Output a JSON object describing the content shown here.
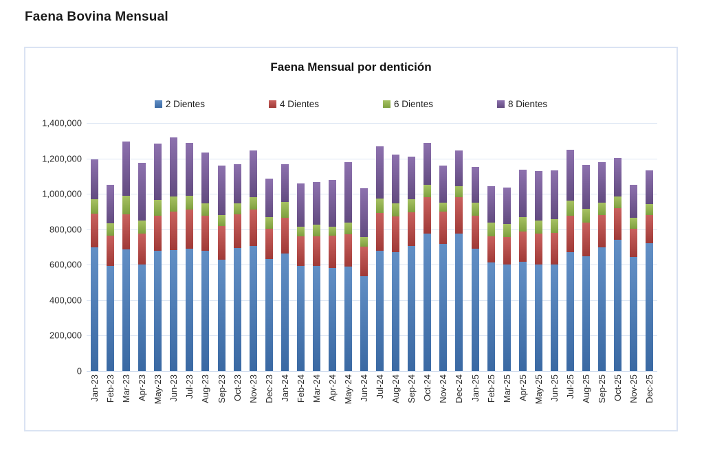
{
  "page": {
    "title": "Faena Bovina Mensual"
  },
  "colors": {
    "chart_border": "#dae3f3",
    "gridline": "#dde6f3",
    "axis_line": "#c9d7ec"
  },
  "chart_data": {
    "type": "bar",
    "stacked": true,
    "title": "Faena Mensual por dentición",
    "xlabel": "",
    "ylabel": "",
    "ylim": [
      0,
      1400000
    ],
    "ytick_interval": 200000,
    "ytick_labels": [
      "0",
      "200,000",
      "400,000",
      "600,000",
      "800,000",
      "1,000,000",
      "1,200,000",
      "1,400,000"
    ],
    "grid": true,
    "legend_position": "top",
    "categories": [
      "Jan-23",
      "Feb-23",
      "Mar-23",
      "Apr-23",
      "May-23",
      "Jun-23",
      "Jul-23",
      "Aug-23",
      "Sep-23",
      "Oct-23",
      "Nov-23",
      "Dec-23",
      "Jan-24",
      "Feb-24",
      "Mar-24",
      "Apr-24",
      "May-24",
      "Jun-24",
      "Jul-24",
      "Aug-24",
      "Sep-24",
      "Oct-24",
      "Nov-24",
      "Dec-24",
      "Jan-25",
      "Feb-25",
      "Mar-25",
      "Apr-25",
      "May-25",
      "Jun-25",
      "Jul-25",
      "Aug-25",
      "Sep-25",
      "Oct-25",
      "Nov-25",
      "Dec-25"
    ],
    "series": [
      {
        "name": "2 Dientes",
        "color": "#4F81BD",
        "gradient": [
          "#628fc5",
          "#3a69a3"
        ],
        "values": [
          698000,
          595000,
          685000,
          603000,
          677000,
          682000,
          690000,
          680000,
          630000,
          693000,
          706000,
          632000,
          665000,
          594000,
          594000,
          583000,
          590000,
          535000,
          680000,
          672000,
          707000,
          777000,
          719000,
          776000,
          690000,
          614000,
          600000,
          617000,
          600000,
          600000,
          672000,
          649000,
          697000,
          739000,
          645000,
          723000
        ]
      },
      {
        "name": "4 Dientes",
        "color": "#C0504D",
        "gradient": [
          "#c9615e",
          "#a03a37"
        ],
        "values": [
          190000,
          168000,
          200000,
          172000,
          198000,
          219000,
          221000,
          195000,
          188000,
          191000,
          204000,
          172000,
          200000,
          167000,
          167000,
          181000,
          180000,
          168000,
          213000,
          202000,
          190000,
          204000,
          181000,
          207000,
          185000,
          148000,
          155000,
          170000,
          177000,
          181000,
          203000,
          190000,
          184000,
          181000,
          159000,
          158000
        ]
      },
      {
        "name": "6 Dientes",
        "color": "#9BBB59",
        "gradient": [
          "#a6c162",
          "#7fa040"
        ],
        "values": [
          82000,
          72000,
          103000,
          74000,
          90000,
          85000,
          77000,
          72000,
          61000,
          61000,
          71000,
          64000,
          90000,
          54000,
          65000,
          52000,
          68000,
          52000,
          81000,
          71000,
          71000,
          71000,
          52000,
          62000,
          76000,
          77000,
          75000,
          81000,
          73000,
          77000,
          86000,
          75000,
          68000,
          65000,
          62000,
          61000
        ]
      },
      {
        "name": "8 Dientes",
        "color": "#8064A2",
        "gradient": [
          "#8d71ae",
          "#624b80"
        ],
        "values": [
          225000,
          218000,
          307000,
          326000,
          320000,
          334000,
          299000,
          288000,
          280000,
          223000,
          264000,
          218000,
          213000,
          243000,
          241000,
          262000,
          340000,
          277000,
          293000,
          277000,
          242000,
          235000,
          207000,
          200000,
          200000,
          204000,
          205000,
          270000,
          280000,
          275000,
          288000,
          249000,
          229000,
          219000,
          187000,
          191000
        ]
      }
    ]
  }
}
